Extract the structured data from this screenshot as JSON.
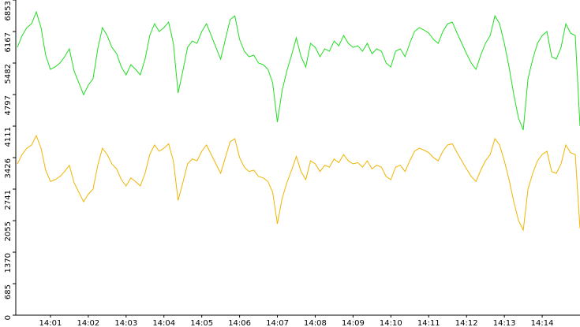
{
  "chart_data": {
    "type": "line",
    "categories": [
      null,
      null,
      null,
      null,
      null,
      null,
      null,
      "14:01",
      null,
      null,
      null,
      null,
      null,
      null,
      null,
      "14:02",
      null,
      null,
      null,
      null,
      null,
      null,
      null,
      "14:03",
      null,
      null,
      null,
      null,
      null,
      null,
      null,
      "14:04",
      null,
      null,
      null,
      null,
      null,
      null,
      null,
      "14:05",
      null,
      null,
      null,
      null,
      null,
      null,
      null,
      "14:06",
      null,
      null,
      null,
      null,
      null,
      null,
      null,
      "14:07",
      null,
      null,
      null,
      null,
      null,
      null,
      null,
      "14:08",
      null,
      null,
      null,
      null,
      null,
      null,
      null,
      "14:09",
      null,
      null,
      null,
      null,
      null,
      null,
      null,
      "14:10",
      null,
      null,
      null,
      null,
      null,
      null,
      null,
      "14:11",
      null,
      null,
      null,
      null,
      null,
      null,
      null,
      "14:12",
      null,
      null,
      null,
      null,
      null,
      null,
      null,
      "14:13",
      null,
      null,
      null,
      null,
      null,
      null,
      null,
      "14:14",
      null,
      null,
      null,
      null,
      null,
      null,
      null,
      null
    ],
    "series": [
      {
        "color": "#22dd22",
        "values": [
          5824,
          6081,
          6252,
          6338,
          6595,
          6252,
          5653,
          5345,
          5396,
          5482,
          5619,
          5790,
          5310,
          5053,
          4796,
          5002,
          5139,
          5790,
          6252,
          6081,
          5824,
          5687,
          5396,
          5225,
          5447,
          5345,
          5225,
          5567,
          6081,
          6338,
          6167,
          6252,
          6372,
          5910,
          4831,
          5310,
          5824,
          5961,
          5910,
          6167,
          6338,
          6081,
          5824,
          5567,
          5996,
          6424,
          6509,
          5996,
          5739,
          5619,
          5653,
          5482,
          5447,
          5345,
          5053,
          4197,
          4882,
          5310,
          5653,
          6030,
          5619,
          5396,
          5910,
          5824,
          5619,
          5790,
          5739,
          5961,
          5858,
          6081,
          5910,
          5824,
          5858,
          5739,
          5910,
          5687,
          5790,
          5739,
          5482,
          5396,
          5739,
          5790,
          5619,
          5910,
          6167,
          6252,
          6201,
          6133,
          5996,
          5910,
          6167,
          6338,
          6372,
          6133,
          5910,
          5687,
          5482,
          5345,
          5653,
          5910,
          6081,
          6509,
          6338,
          5910,
          5396,
          4796,
          4283,
          4026,
          5139,
          5567,
          5910,
          6081,
          6167,
          5619,
          5567,
          5824,
          6338,
          6133,
          6081,
          4111
        ]
      },
      {
        "color": "#f0b400",
        "values": [
          3289,
          3494,
          3631,
          3700,
          3905,
          3631,
          3152,
          2905,
          2946,
          3015,
          3124,
          3261,
          2878,
          2672,
          2467,
          2631,
          2741,
          3261,
          3631,
          3494,
          3289,
          3179,
          2946,
          2809,
          2987,
          2905,
          2809,
          3083,
          3494,
          3700,
          3563,
          3631,
          3727,
          3357,
          2494,
          2878,
          3289,
          3398,
          3357,
          3563,
          3700,
          3494,
          3289,
          3083,
          3426,
          3768,
          3837,
          3426,
          3220,
          3124,
          3152,
          3015,
          2987,
          2905,
          2672,
          1987,
          2535,
          2878,
          3152,
          3453,
          3124,
          2946,
          3357,
          3289,
          3124,
          3261,
          3220,
          3398,
          3316,
          3494,
          3357,
          3289,
          3316,
          3220,
          3357,
          3179,
          3261,
          3220,
          3015,
          2946,
          3220,
          3261,
          3124,
          3357,
          3563,
          3631,
          3590,
          3535,
          3426,
          3357,
          3563,
          3700,
          3727,
          3535,
          3357,
          3179,
          3015,
          2905,
          3152,
          3357,
          3494,
          3837,
          3700,
          3357,
          2946,
          2467,
          2056,
          1850,
          2741,
          3083,
          3357,
          3494,
          3563,
          3124,
          3083,
          3289,
          3700,
          3535,
          3494,
          1884
        ]
      }
    ],
    "ylim": [
      0,
      6853
    ],
    "yticks": [
      0,
      685,
      1370,
      2055,
      2741,
      3426,
      4111,
      4797,
      5482,
      6167,
      6853
    ]
  }
}
